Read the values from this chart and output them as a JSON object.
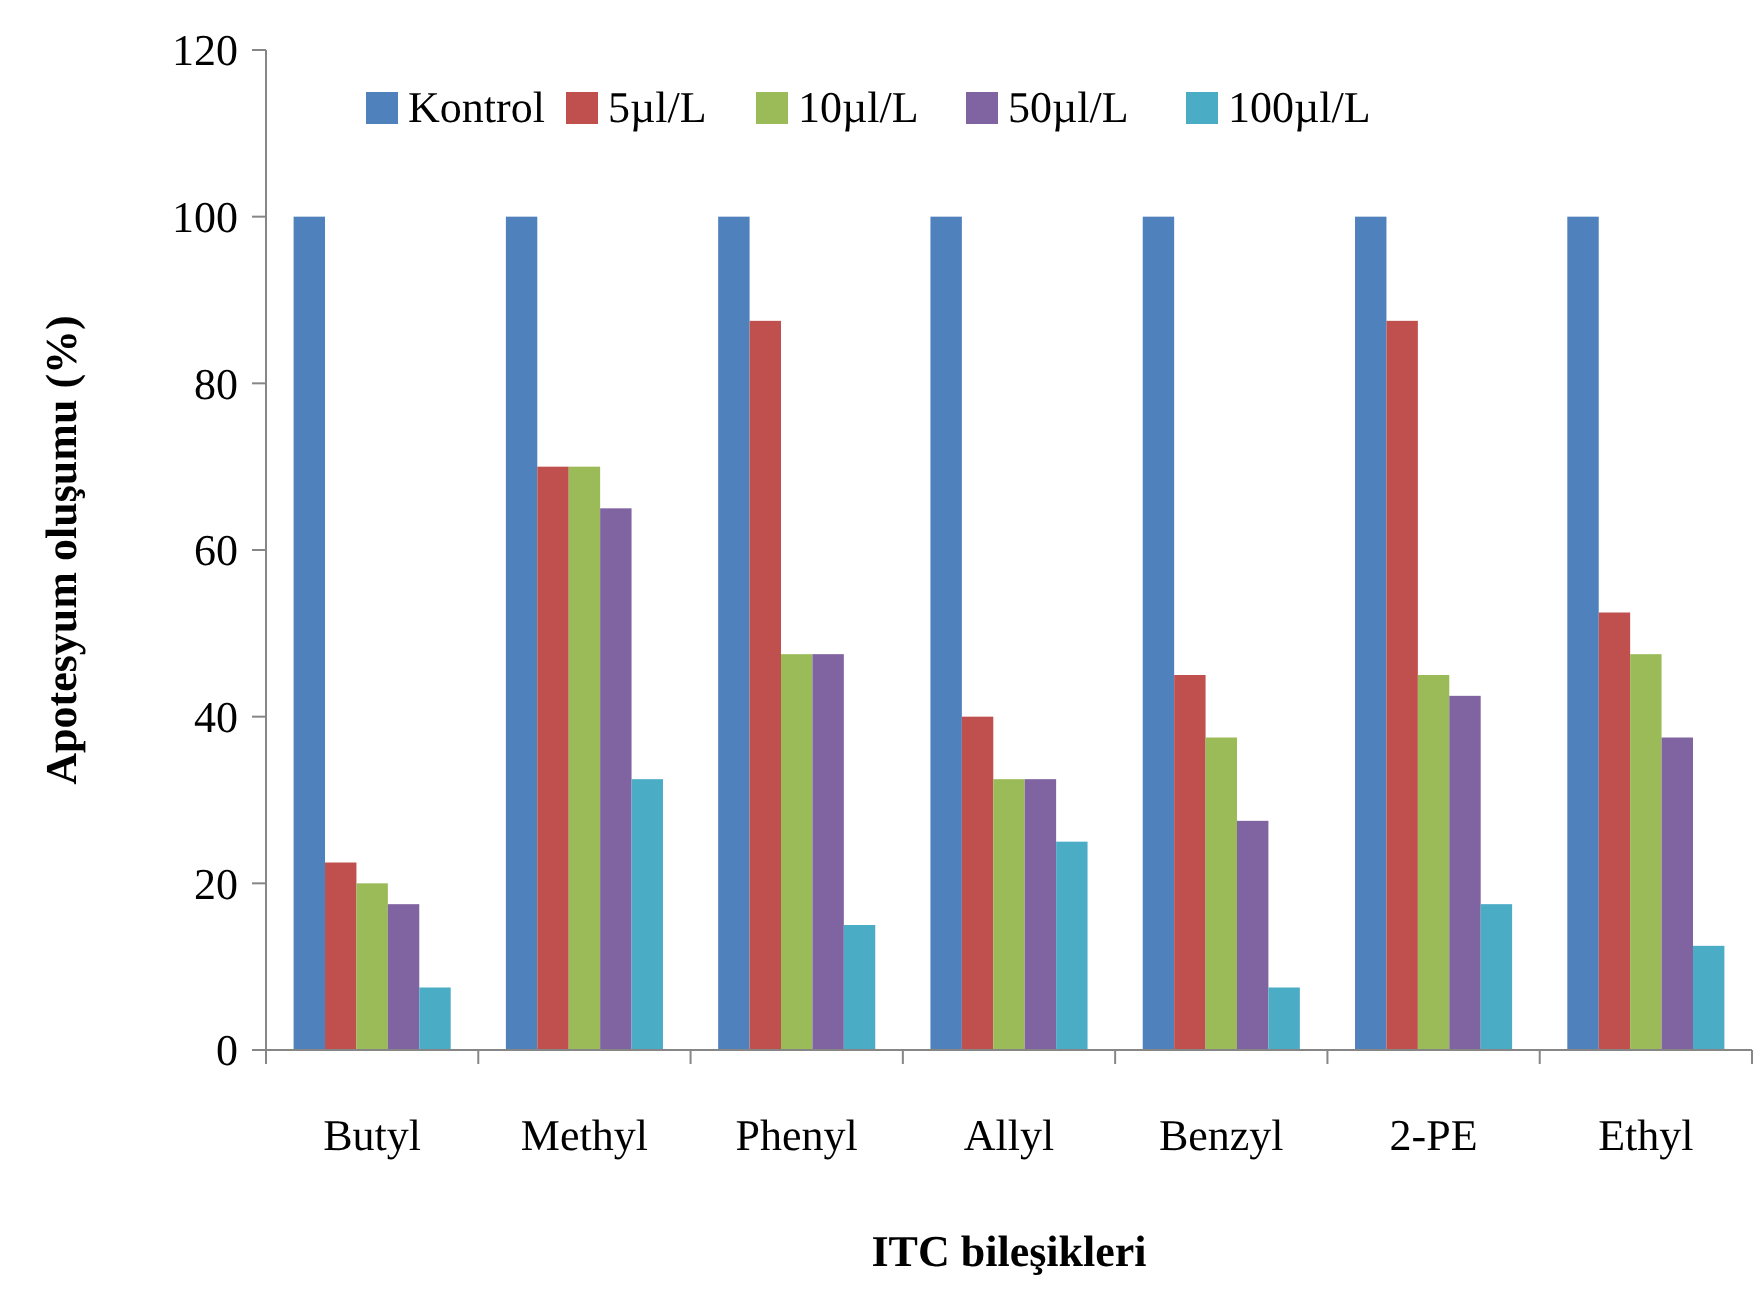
{
  "chart_data": {
    "type": "bar",
    "xlabel": "ITC  bileşikleri",
    "ylabel": "Apotesyum oluşumu (%)",
    "categories": [
      "Butyl",
      "Methyl",
      "Phenyl",
      "Allyl",
      "Benzyl",
      "2-PE",
      "Ethyl"
    ],
    "series": [
      {
        "name": "Kontrol",
        "color": "#4f81bd",
        "values": [
          100,
          100,
          100,
          100,
          100,
          100,
          100
        ]
      },
      {
        "name": "5µl/L",
        "color": "#c0504d",
        "values": [
          22.5,
          70,
          87.5,
          40,
          45,
          87.5,
          52.5
        ]
      },
      {
        "name": "10µl/L",
        "color": "#9bbb59",
        "values": [
          20,
          70,
          47.5,
          32.5,
          37.5,
          45,
          47.5
        ]
      },
      {
        "name": "50µl/L",
        "color": "#8064a2",
        "values": [
          17.5,
          65,
          47.5,
          32.5,
          27.5,
          42.5,
          37.5
        ]
      },
      {
        "name": "100µl/L",
        "color": "#4bacc6",
        "values": [
          7.5,
          32.5,
          15,
          25,
          7.5,
          17.5,
          12.5
        ]
      }
    ],
    "ylim": [
      0,
      120
    ],
    "yticks": [
      0,
      20,
      40,
      60,
      80,
      100,
      120
    ],
    "grid": false,
    "legend": "top"
  }
}
